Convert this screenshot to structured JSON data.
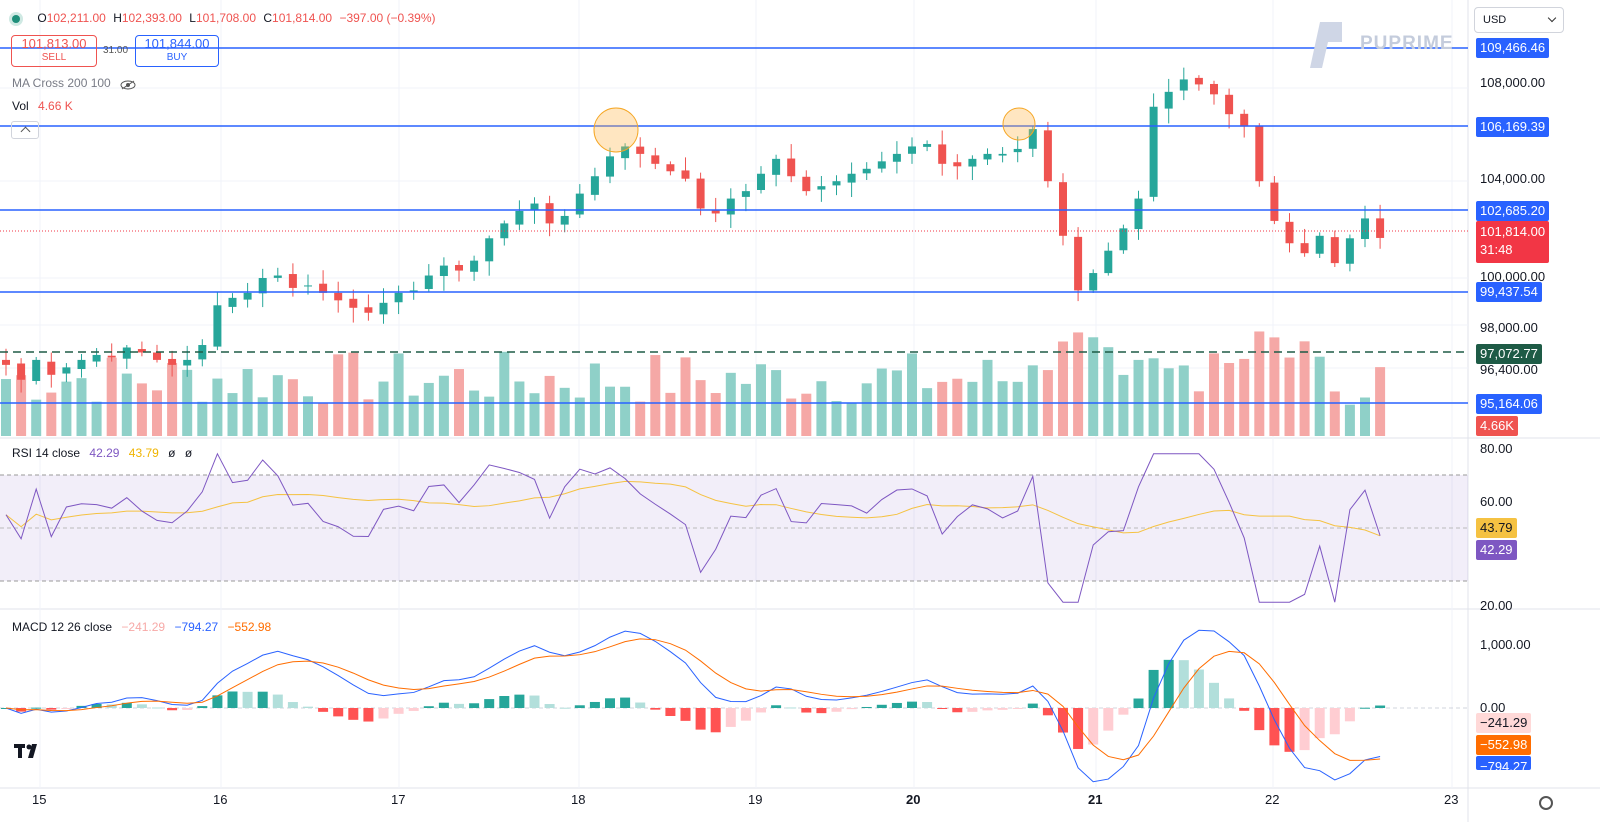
{
  "header": {
    "open_label": "O",
    "open": "102,211.00",
    "high_label": "H",
    "high": "102,393.00",
    "low_label": "L",
    "low": "101,708.00",
    "close_label": "C",
    "close": "101,814.00",
    "change": "−397.00 (−0.39%)"
  },
  "trade": {
    "sell_price": "101,813.00",
    "sell_label": "SELL",
    "spread": "31.00",
    "buy_price": "101,844.00",
    "buy_label": "BUY"
  },
  "indicators": {
    "ma_cross": "MA Cross 200 100",
    "vol_label": "Vol",
    "vol_value": "4.66 K"
  },
  "currency": "USD",
  "watermark": "PUPRIME",
  "price_axis": {
    "ticks": [
      "108,000.00",
      "104,000.00",
      "100,000.00",
      "98,000.00",
      "96,400.00"
    ],
    "levels": [
      {
        "value": "109,466.46",
        "color": "#2962ff"
      },
      {
        "value": "106,169.39",
        "color": "#2962ff"
      },
      {
        "value": "102,685.20",
        "color": "#2962ff"
      },
      {
        "value": "99,437.54",
        "color": "#2962ff"
      },
      {
        "value": "97,072.77",
        "color": "#1e5b46"
      },
      {
        "value": "95,164.06",
        "color": "#2962ff"
      }
    ],
    "last_price": "101,814.00",
    "countdown": "31:48",
    "volume_tag": "4.66K"
  },
  "rsi": {
    "label": "RSI 14 close",
    "value1": "42.29",
    "value2": "43.79",
    "extra1": "ø",
    "extra2": "ø",
    "ticks": [
      "80.00",
      "60.00",
      "20.00"
    ],
    "tag_ma": "43.79",
    "tag_rsi": "42.29"
  },
  "macd": {
    "label": "MACD 12 26 close",
    "hist": "−241.29",
    "macd": "−794.27",
    "signal": "−552.98",
    "ticks": [
      "1,000.00",
      "0.00"
    ],
    "tag_hist": "−241.29",
    "tag_signal": "−552.98",
    "tag_macd": "−794.27"
  },
  "time_axis": [
    "15",
    "16",
    "17",
    "18",
    "19",
    "20",
    "21",
    "22",
    "23"
  ],
  "colors": {
    "up": "#26a69a",
    "down": "#ef5350",
    "level": "#2962ff",
    "rsi": "#7e57c2",
    "rsi_ma": "#f5c242",
    "macd": "#2962ff",
    "signal": "#ff6d00"
  },
  "chart_data": {
    "type": "candlestick",
    "approx_close": [
      96700,
      96100,
      96900,
      96300,
      96600,
      96900,
      97100,
      97000,
      97400,
      97200,
      96900,
      96700,
      96900,
      97500,
      99100,
      99400,
      99600,
      100200,
      100300,
      99800,
      99900,
      99600,
      99300,
      99000,
      98800,
      99200,
      99600,
      99700,
      100300,
      100700,
      100500,
      100900,
      101800,
      102400,
      102900,
      103200,
      102400,
      102700,
      103600,
      104300,
      105100,
      105500,
      105200,
      104800,
      104500,
      104200,
      103000,
      102800,
      103400,
      103700,
      104400,
      105000,
      104300,
      103700,
      103900,
      104100,
      104400,
      104600,
      104900,
      105200,
      105500,
      105600,
      104800,
      104700,
      105000,
      105200,
      105200,
      105400,
      106200,
      104100,
      101900,
      99700,
      100400,
      101300,
      102200,
      103400,
      107100,
      107700,
      108200,
      108000,
      107600,
      106800,
      106300,
      104100,
      102500,
      101600,
      101200,
      101900,
      100800,
      101800,
      102600,
      101814
    ],
    "rsi_range": [
      20,
      80
    ],
    "macd_range": [
      -800,
      1200
    ]
  }
}
